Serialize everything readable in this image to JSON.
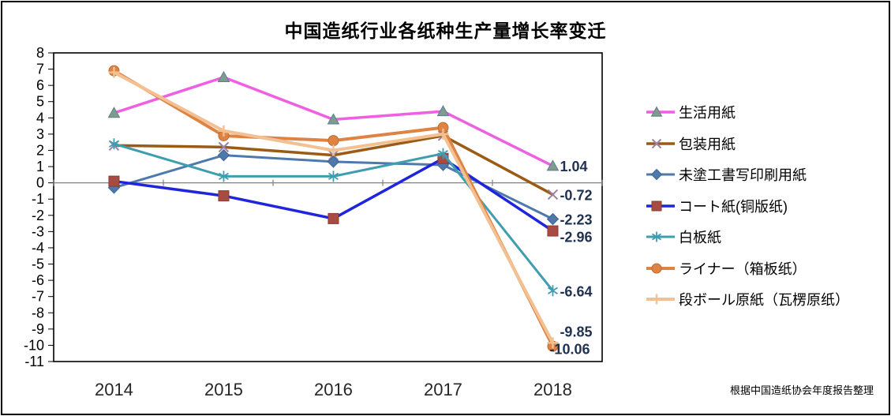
{
  "title": "中国造纸行业各纸种生产量增长率变迁",
  "source_note": "根据中国造纸协会年度报告整理",
  "colors": {
    "axis": "#000000",
    "zero_line": "#808080",
    "ytick_label": "#000000",
    "year_label": "#262626",
    "end_label": "#1F3050",
    "background": "#FFFFFF"
  },
  "chart_data": {
    "type": "line",
    "title": "中国造纸行业各纸种生产量增长率变迁",
    "xlabel": "",
    "ylabel": "",
    "categories": [
      "2014",
      "2015",
      "2016",
      "2017",
      "2018"
    ],
    "ylim": [
      -11,
      8
    ],
    "ytick_step": 1,
    "ytick_labels": [
      "8",
      "7",
      "6",
      "5",
      "4",
      "3",
      "2",
      "1",
      "0",
      "-1",
      "-2",
      "-3",
      "-4",
      "-5",
      "-6",
      "-7",
      "-8",
      "-9",
      "-10",
      "-11"
    ],
    "grid": "zero-line-only",
    "legend_position": "right",
    "series": [
      {
        "name": "生活用紙",
        "values": [
          4.3,
          6.5,
          3.9,
          4.4,
          1.04
        ],
        "end_label": "1.04",
        "color": "#EE5FE1",
        "marker": "triangle",
        "marker_fill": "#7E9C8B",
        "marker_stroke": "#5C7E91"
      },
      {
        "name": "包装用紙",
        "values": [
          2.3,
          2.2,
          1.7,
          2.9,
          -0.72
        ],
        "end_label": "-0.72",
        "color": "#9A5B16",
        "marker": "x",
        "marker_fill": "#9E80A4",
        "marker_stroke": "#9E80A4"
      },
      {
        "name": "未塗工書写印刷用紙",
        "values": [
          -0.3,
          1.7,
          1.3,
          1.1,
          -2.23
        ],
        "end_label": "-2.23",
        "color": "#4E79AD",
        "marker": "diamond",
        "marker_fill": "#4E79AD",
        "marker_stroke": "#3E6390"
      },
      {
        "name": "コート紙(铜版纸)",
        "values": [
          0.1,
          -0.8,
          -2.2,
          1.5,
          -2.96
        ],
        "end_label": "-2.96",
        "color": "#1F25DC",
        "marker": "square",
        "marker_fill": "#A84B42",
        "marker_stroke": "#8B3B33"
      },
      {
        "name": "白板紙",
        "values": [
          2.4,
          0.4,
          0.4,
          1.8,
          -6.64
        ],
        "end_label": "-6.64",
        "color": "#3F9DB0",
        "marker": "asterisk",
        "marker_fill": "#3F9DB0",
        "marker_stroke": "#3F9DB0"
      },
      {
        "name": "ライナー（箱板纸）",
        "values": [
          6.9,
          2.9,
          2.6,
          3.4,
          -10.06
        ],
        "end_label": "-10.06",
        "color": "#DE8344",
        "marker": "circle",
        "marker_fill": "#DE8344",
        "marker_stroke": "#C06A2B"
      },
      {
        "name": "段ボール原紙（瓦楞原纸）",
        "values": [
          6.8,
          3.2,
          2.0,
          3.0,
          -9.85
        ],
        "end_label": "-9.85",
        "color": "#F2C091",
        "marker": "plus",
        "marker_fill": "#F2C091",
        "marker_stroke": "#F2C091"
      }
    ]
  }
}
